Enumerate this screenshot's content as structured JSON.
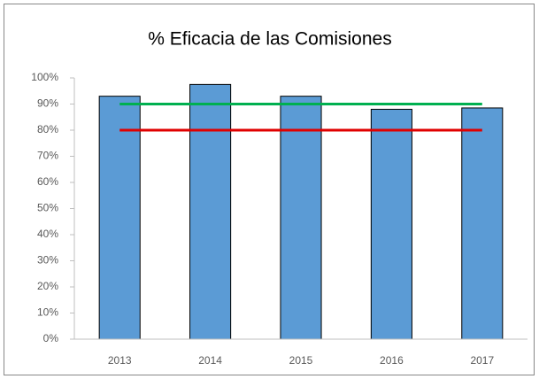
{
  "chart_data": {
    "type": "bar",
    "title": "% Eficacia de las Comisiones",
    "categories": [
      "2013",
      "2014",
      "2015",
      "2016",
      "2017"
    ],
    "values": [
      93,
      97.5,
      93,
      88,
      88.5
    ],
    "color": "#5b9bd5",
    "reference_lines": [
      {
        "value": 90,
        "color": "#00b050"
      },
      {
        "value": 80,
        "color": "#e00000"
      }
    ],
    "ylim": [
      0,
      100
    ],
    "yticks": [
      {
        "value": 0,
        "label": "0%"
      },
      {
        "value": 10,
        "label": "10%"
      },
      {
        "value": 20,
        "label": "20%"
      },
      {
        "value": 30,
        "label": "30%"
      },
      {
        "value": 40,
        "label": "40%"
      },
      {
        "value": 50,
        "label": "50%"
      },
      {
        "value": 60,
        "label": "60%"
      },
      {
        "value": 70,
        "label": "70%"
      },
      {
        "value": 80,
        "label": "80%"
      },
      {
        "value": 90,
        "label": "90%"
      },
      {
        "value": 100,
        "label": "100%"
      }
    ],
    "grid": false
  }
}
